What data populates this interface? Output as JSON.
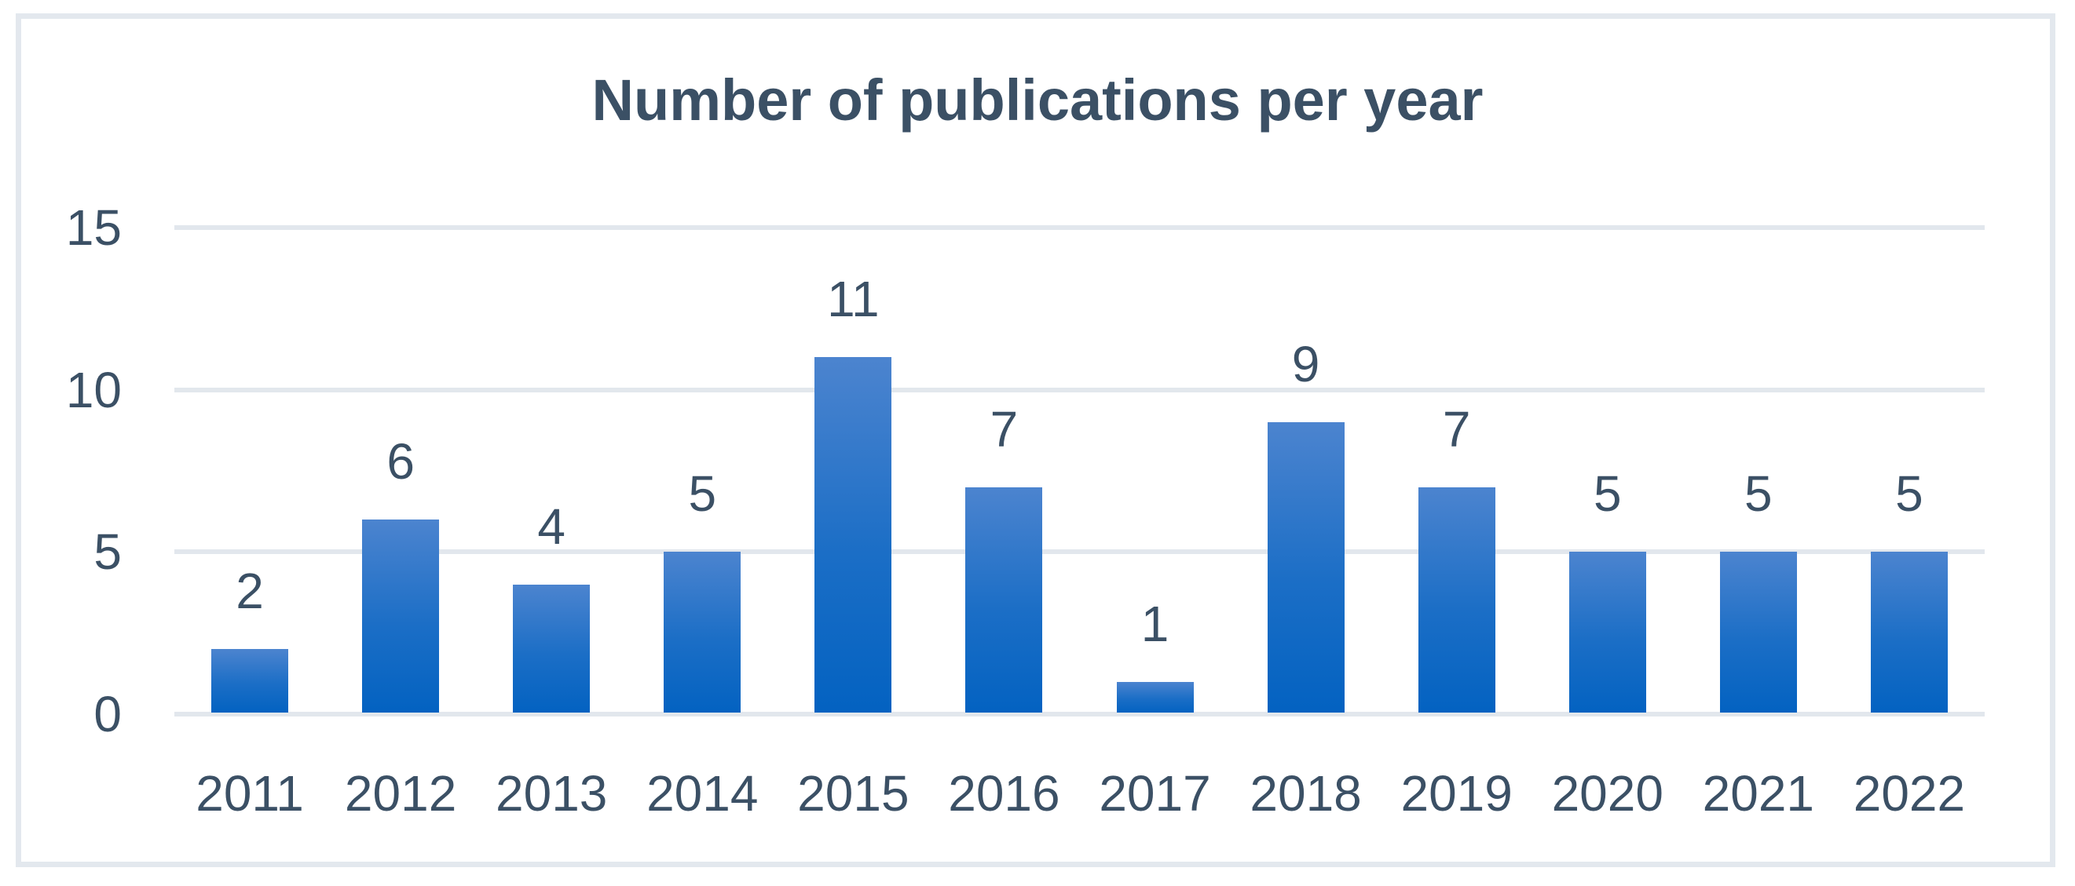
{
  "chart_data": {
    "type": "bar",
    "title": "Number of publications per year",
    "categories": [
      "2011",
      "2012",
      "2013",
      "2014",
      "2015",
      "2016",
      "2017",
      "2018",
      "2019",
      "2020",
      "2021",
      "2022"
    ],
    "values": [
      2,
      6,
      4,
      5,
      11,
      7,
      1,
      9,
      7,
      5,
      5,
      5
    ],
    "data_labels": [
      "2",
      "6",
      "4",
      "5",
      "11",
      "7",
      "1",
      "9",
      "7",
      "5",
      "5",
      "5"
    ],
    "xlabel": "",
    "ylabel": "",
    "y_ticks": [
      0,
      5,
      10,
      15
    ],
    "ylim": [
      0,
      15
    ],
    "grid": "horizontal",
    "legend": "none",
    "colors": {
      "bar_gradient_top": "#4c84cf",
      "bar_gradient_bottom": "#0362c1",
      "text": "#3b5065",
      "gridline": "#e2e7ed",
      "frame_border": "#e3e8ee",
      "background": "#ffffff"
    }
  }
}
